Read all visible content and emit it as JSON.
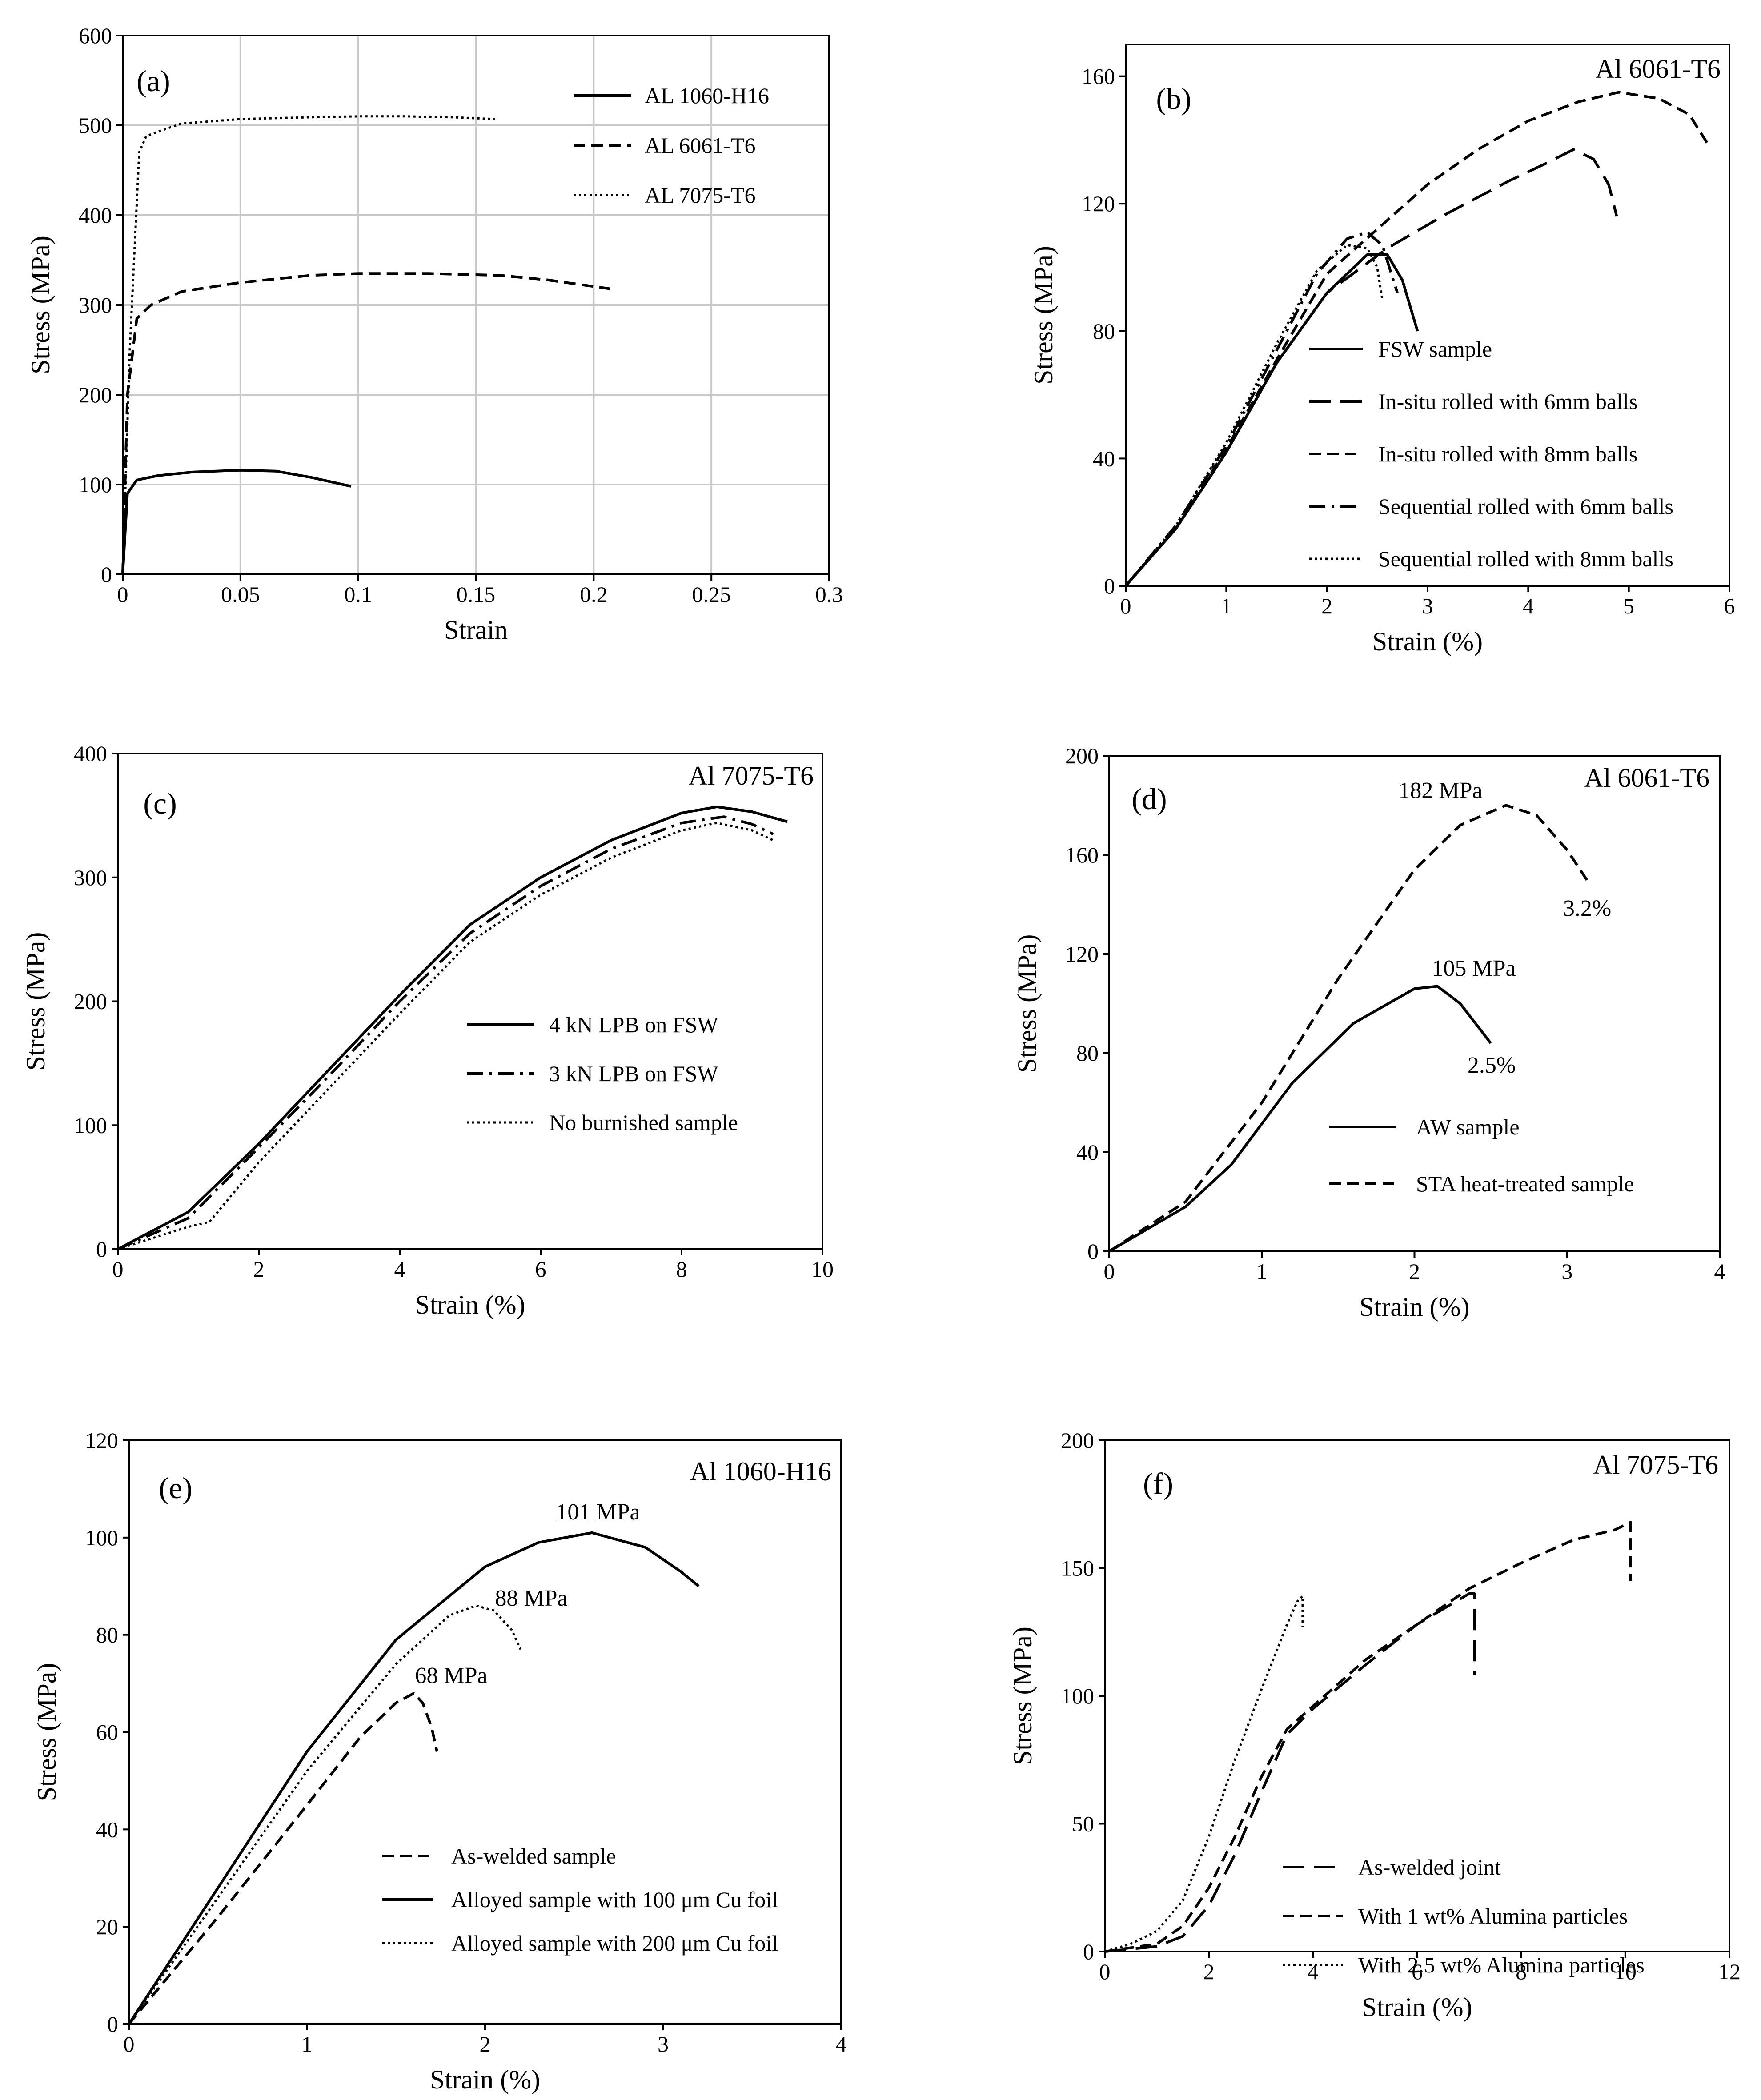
{
  "chart_data": [
    {
      "id": "a",
      "type": "line",
      "panel_label": "(a)",
      "title": "",
      "xlabel": "Strain",
      "ylabel": "Stress (MPa)",
      "xlim": [
        0,
        0.3
      ],
      "ylim": [
        0,
        600
      ],
      "grid": true,
      "legend": "top-right",
      "xticks": [
        "0",
        "0.05",
        "0.1",
        "0.15",
        "0.2",
        "0.25",
        "0.3"
      ],
      "yticks": [
        "0",
        "100",
        "200",
        "300",
        "400",
        "500",
        "600"
      ],
      "annotations": [],
      "series": [
        {
          "name": "AL 1060-H16",
          "style": "solid",
          "x": [
            0,
            0.002,
            0.006,
            0.015,
            0.03,
            0.05,
            0.065,
            0.08,
            0.097
          ],
          "y": [
            0,
            90,
            105,
            110,
            114,
            116,
            115,
            108,
            98
          ]
        },
        {
          "name": "AL 6061-T6",
          "style": "dashed",
          "x": [
            0,
            0.002,
            0.006,
            0.012,
            0.025,
            0.05,
            0.08,
            0.1,
            0.13,
            0.16,
            0.18,
            0.207
          ],
          "y": [
            0,
            200,
            285,
            300,
            315,
            325,
            333,
            335,
            335,
            333,
            328,
            318
          ]
        },
        {
          "name": "AL 7075-T6",
          "style": "dotted",
          "x": [
            0,
            0.003,
            0.007,
            0.01,
            0.015,
            0.025,
            0.05,
            0.08,
            0.1,
            0.12,
            0.14,
            0.158
          ],
          "y": [
            0,
            250,
            470,
            488,
            493,
            502,
            507,
            509,
            510,
            510,
            509,
            507
          ]
        }
      ]
    },
    {
      "id": "b",
      "type": "line",
      "panel_label": "(b)",
      "title": "Al 6061-T6",
      "xlabel": "Strain (%)",
      "ylabel": "Stress (MPa)",
      "xlim": [
        0,
        6
      ],
      "ylim": [
        0,
        170
      ],
      "grid": false,
      "legend": "bottom-right",
      "xticks": [
        "0",
        "1",
        "2",
        "3",
        "4",
        "5",
        "6"
      ],
      "yticks": [
        "0",
        "40",
        "80",
        "120",
        "160"
      ],
      "annotations": [],
      "series": [
        {
          "name": "FSW sample",
          "style": "solid",
          "x": [
            0,
            0.5,
            1,
            1.5,
            2,
            2.4,
            2.6,
            2.75,
            2.9
          ],
          "y": [
            0,
            18,
            42,
            70,
            92,
            104,
            104,
            96,
            80
          ]
        },
        {
          "name": "In-situ rolled with 6mm balls",
          "style": "longdash",
          "x": [
            0,
            0.5,
            1,
            1.5,
            2,
            2.6,
            3.2,
            3.8,
            4.2,
            4.45,
            4.65,
            4.8,
            4.88
          ],
          "y": [
            0,
            18,
            42,
            70,
            92,
            106,
            117,
            127,
            133,
            137,
            134,
            126,
            116
          ]
        },
        {
          "name": "In-situ rolled with 8mm balls",
          "style": "dashed",
          "x": [
            0,
            0.5,
            1,
            1.5,
            2,
            2.5,
            3,
            3.5,
            4,
            4.5,
            4.9,
            5.3,
            5.6,
            5.8
          ],
          "y": [
            0,
            18,
            43,
            71,
            98,
            112,
            126,
            137,
            146,
            152,
            155,
            153,
            148,
            138
          ]
        },
        {
          "name": "Sequential rolled with 6mm balls",
          "style": "dashdot",
          "x": [
            0,
            0.5,
            1,
            1.5,
            1.9,
            2.2,
            2.4,
            2.55,
            2.7
          ],
          "y": [
            0,
            19,
            44,
            74,
            98,
            109,
            111,
            107,
            92
          ]
        },
        {
          "name": "Sequential rolled with 8mm balls",
          "style": "dotted",
          "x": [
            0,
            0.5,
            1,
            1.5,
            1.9,
            2.2,
            2.4,
            2.5,
            2.55
          ],
          "y": [
            0,
            19,
            45,
            76,
            99,
            107,
            106,
            100,
            90
          ]
        }
      ]
    },
    {
      "id": "c",
      "type": "line",
      "panel_label": "(c)",
      "title": "Al 7075-T6",
      "xlabel": "Strain (%)",
      "ylabel": "Stress (MPa)",
      "xlim": [
        0,
        10
      ],
      "ylim": [
        0,
        400
      ],
      "grid": false,
      "legend": "center",
      "xticks": [
        "0",
        "2",
        "4",
        "6",
        "8",
        "10"
      ],
      "yticks": [
        "0",
        "100",
        "200",
        "300",
        "400"
      ],
      "annotations": [],
      "series": [
        {
          "name": "4 kN LPB on FSW",
          "style": "solid",
          "x": [
            0,
            1,
            2,
            3,
            4,
            5,
            6,
            7,
            8,
            8.5,
            9,
            9.5
          ],
          "y": [
            0,
            30,
            85,
            145,
            205,
            262,
            300,
            330,
            352,
            357,
            353,
            345
          ]
        },
        {
          "name": "3 kN LPB on FSW",
          "style": "dashdot",
          "x": [
            0,
            1,
            2,
            3,
            4,
            5,
            6,
            7,
            8,
            8.6,
            9,
            9.3
          ],
          "y": [
            0,
            25,
            82,
            140,
            200,
            255,
            293,
            323,
            344,
            349,
            343,
            335
          ]
        },
        {
          "name": "No burnished sample",
          "style": "dotted",
          "x": [
            0,
            1,
            1.3,
            2,
            3,
            4,
            5,
            6,
            7,
            8,
            8.5,
            9,
            9.3
          ],
          "y": [
            0,
            18,
            22,
            70,
            130,
            190,
            248,
            286,
            316,
            338,
            344,
            338,
            330
          ]
        }
      ]
    },
    {
      "id": "d",
      "type": "line",
      "panel_label": "(d)",
      "title": "Al 6061-T6",
      "xlabel": "Strain (%)",
      "ylabel": "Stress (MPa)",
      "xlim": [
        0,
        4
      ],
      "ylim": [
        0,
        200
      ],
      "grid": false,
      "legend": "bottom-center",
      "xticks": [
        "0",
        "1",
        "2",
        "3",
        "4"
      ],
      "yticks": [
        "0",
        "40",
        "80",
        "120",
        "160",
        "200"
      ],
      "annotations": [
        "182 MPa",
        "3.2%",
        "105 MPa",
        "2.5%"
      ],
      "series": [
        {
          "name": "AW sample",
          "style": "solid",
          "x": [
            0,
            0.5,
            0.8,
            1.2,
            1.6,
            2.0,
            2.15,
            2.3,
            2.4,
            2.5
          ],
          "y": [
            0,
            18,
            35,
            68,
            92,
            106,
            107,
            100,
            92,
            84
          ]
        },
        {
          "name": "STA heat-treated sample",
          "style": "dashed",
          "x": [
            0,
            0.5,
            1,
            1.5,
            2,
            2.3,
            2.6,
            2.8,
            3.0,
            3.15
          ],
          "y": [
            0,
            20,
            60,
            110,
            154,
            172,
            180,
            176,
            162,
            148
          ]
        }
      ]
    },
    {
      "id": "e",
      "type": "line",
      "panel_label": "(e)",
      "title": "Al 1060-H16",
      "xlabel": "Strain (%)",
      "ylabel": "Stress (MPa)",
      "xlim": [
        0,
        4
      ],
      "ylim": [
        0,
        120
      ],
      "grid": false,
      "legend": "bottom-right",
      "xticks": [
        "0",
        "1",
        "2",
        "3",
        "4"
      ],
      "yticks": [
        "0",
        "20",
        "40",
        "60",
        "80",
        "100",
        "120"
      ],
      "annotations": [
        "101 MPa",
        "88 MPa",
        "68 MPa"
      ],
      "series": [
        {
          "name": "As-welded sample",
          "style": "dashed",
          "x": [
            0,
            0.5,
            1,
            1.3,
            1.5,
            1.6,
            1.65,
            1.7,
            1.73
          ],
          "y": [
            0,
            22,
            45,
            59,
            66,
            68,
            66,
            61,
            56
          ]
        },
        {
          "name": "Alloyed sample with 100 μm Cu foil",
          "style": "solid",
          "x": [
            0,
            0.5,
            1,
            1.5,
            2,
            2.3,
            2.6,
            2.9,
            3.1,
            3.2
          ],
          "y": [
            0,
            28,
            56,
            79,
            94,
            99,
            101,
            98,
            93,
            90
          ]
        },
        {
          "name": "Alloyed sample with 200 μm Cu foil",
          "style": "dotted",
          "x": [
            0,
            0.5,
            1,
            1.5,
            1.8,
            1.95,
            2.05,
            2.15,
            2.2
          ],
          "y": [
            0,
            26,
            52,
            74,
            84,
            86,
            85,
            81,
            77
          ]
        }
      ]
    },
    {
      "id": "f",
      "type": "line",
      "panel_label": "(f)",
      "title": "Al 7075-T6",
      "xlabel": "Strain (%)",
      "ylabel": "Stress (MPa)",
      "xlim": [
        0,
        12
      ],
      "ylim": [
        0,
        200
      ],
      "grid": false,
      "legend": "bottom-center",
      "xticks": [
        "0",
        "2",
        "4",
        "6",
        "8",
        "10",
        "12"
      ],
      "yticks": [
        "0",
        "50",
        "100",
        "150",
        "200"
      ],
      "annotations": [],
      "series": [
        {
          "name": "As-welded joint",
          "style": "longdash",
          "x": [
            0,
            1,
            1.5,
            2,
            2.5,
            3,
            3.5,
            4,
            5,
            6,
            7,
            7.1,
            7.1
          ],
          "y": [
            0,
            2,
            6,
            18,
            38,
            62,
            85,
            95,
            112,
            128,
            140,
            140,
            108
          ]
        },
        {
          "name": "With 1 wt% Alumina particles",
          "style": "dashed",
          "x": [
            0,
            1,
            1.5,
            2,
            2.5,
            3,
            3.5,
            4,
            5,
            6,
            7,
            8,
            9,
            9.8,
            10.1,
            10.1
          ],
          "y": [
            0,
            3,
            10,
            25,
            45,
            68,
            87,
            96,
            114,
            128,
            142,
            152,
            161,
            165,
            168,
            145
          ]
        },
        {
          "name": "With 2.5 wt% Alumina particles",
          "style": "dotted",
          "x": [
            0,
            0.5,
            1,
            1.5,
            2,
            2.5,
            3,
            3.5,
            3.7,
            3.8,
            3.8
          ],
          "y": [
            0,
            3,
            8,
            20,
            45,
            75,
            102,
            128,
            137,
            139,
            127
          ]
        }
      ]
    }
  ]
}
